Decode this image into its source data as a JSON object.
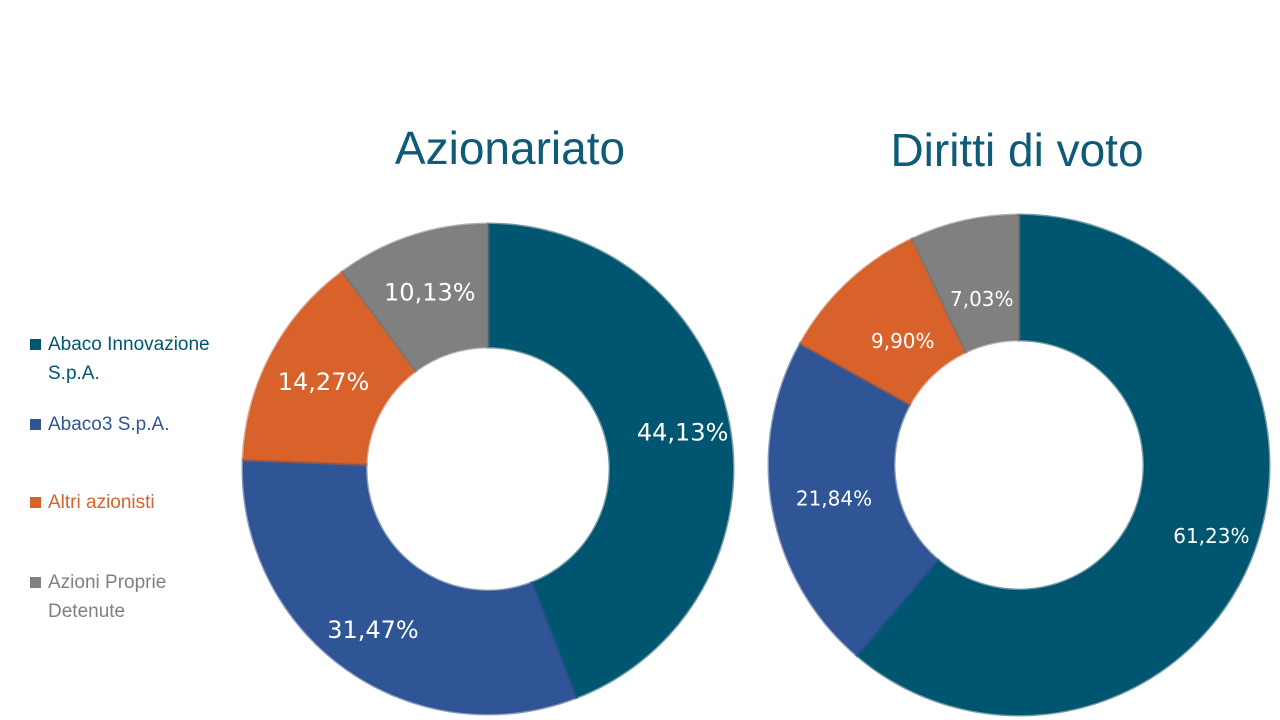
{
  "chart_data": [
    {
      "type": "pie",
      "donut": true,
      "title": "Azionariato",
      "categories": [
        "Abaco Innovazione S.p.A.",
        "Abaco3 S.p.A.",
        "Altri azionisti",
        "Azioni Proprie Detenute"
      ],
      "values": [
        44.13,
        31.47,
        14.27,
        10.13
      ],
      "labels": [
        "44,13%",
        "31,47%",
        "14,27%",
        "10,13%"
      ]
    },
    {
      "type": "pie",
      "donut": true,
      "title": "Diritti di voto",
      "categories": [
        "Abaco Innovazione S.p.A.",
        "Abaco3 S.p.A.",
        "Altri azionisti",
        "Azioni Proprie Detenute"
      ],
      "values": [
        61.23,
        21.84,
        9.9,
        7.03
      ],
      "labels": [
        "61,23%",
        "21,84%",
        "9,90%",
        "7,03%"
      ]
    }
  ],
  "legend": {
    "position": "left",
    "items": [
      {
        "label": "Abaco Innovazione S.p.A.",
        "color": "#005670"
      },
      {
        "label": "Abaco3 S.p.A.",
        "color": "#2f5597"
      },
      {
        "label": "Altri azionisti",
        "color": "#d9622b"
      },
      {
        "label": "Azioni Proprie Detenute",
        "color": "#808080"
      }
    ]
  },
  "colors": {
    "series": [
      "#005670",
      "#2f5597",
      "#d9622b",
      "#808080"
    ],
    "title": "#0d5a79",
    "label_text": "#ffffff"
  }
}
